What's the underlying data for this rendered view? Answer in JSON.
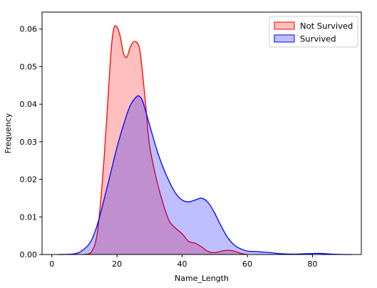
{
  "chart_data": {
    "type": "area",
    "xlabel": "Name_Length",
    "ylabel": "Frequency",
    "xlim": [
      -3,
      95
    ],
    "ylim": [
      0,
      0.0645
    ],
    "xticks": [
      0,
      20,
      40,
      60,
      80
    ],
    "yticks": [
      0.0,
      0.01,
      0.02,
      0.03,
      0.04,
      0.05,
      0.06
    ],
    "ytick_labels": [
      "0.00",
      "0.01",
      "0.02",
      "0.03",
      "0.04",
      "0.05",
      "0.06"
    ],
    "grid": false,
    "legend_position": "top-right",
    "series": [
      {
        "name": "Not Survived",
        "line_color": "#ff0000",
        "fill_color": "#ff0000",
        "fill_opacity": 0.25,
        "points": [
          [
            10,
            0.0
          ],
          [
            12,
            0.0005
          ],
          [
            14,
            0.006
          ],
          [
            16,
            0.025
          ],
          [
            18,
            0.052
          ],
          [
            19,
            0.06
          ],
          [
            20,
            0.0605
          ],
          [
            21,
            0.058
          ],
          [
            22,
            0.0535
          ],
          [
            23,
            0.0525
          ],
          [
            24,
            0.055
          ],
          [
            25,
            0.0565
          ],
          [
            26,
            0.0565
          ],
          [
            27,
            0.0545
          ],
          [
            28,
            0.047
          ],
          [
            29,
            0.038
          ],
          [
            30,
            0.029
          ],
          [
            32,
            0.0205
          ],
          [
            34,
            0.014
          ],
          [
            36,
            0.009
          ],
          [
            38,
            0.007
          ],
          [
            40,
            0.0055
          ],
          [
            42,
            0.0035
          ],
          [
            44,
            0.003
          ],
          [
            46,
            0.002
          ],
          [
            48,
            0.0008
          ],
          [
            50,
            0.0005
          ],
          [
            52,
            0.0009
          ],
          [
            54,
            0.0011
          ],
          [
            56,
            0.0009
          ],
          [
            58,
            0.0003
          ],
          [
            60,
            0.0
          ]
        ]
      },
      {
        "name": "Survived",
        "line_color": "#0000ff",
        "fill_color": "#0000ff",
        "fill_opacity": 0.25,
        "points": [
          [
            2,
            0.0
          ],
          [
            6,
            0.0001
          ],
          [
            8,
            0.0004
          ],
          [
            10,
            0.0015
          ],
          [
            12,
            0.0035
          ],
          [
            14,
            0.008
          ],
          [
            16,
            0.0145
          ],
          [
            18,
            0.0215
          ],
          [
            20,
            0.0285
          ],
          [
            22,
            0.0345
          ],
          [
            24,
            0.0395
          ],
          [
            26,
            0.042
          ],
          [
            27,
            0.042
          ],
          [
            28,
            0.0405
          ],
          [
            30,
            0.0345
          ],
          [
            32,
            0.0285
          ],
          [
            34,
            0.0235
          ],
          [
            36,
            0.0195
          ],
          [
            38,
            0.0163
          ],
          [
            40,
            0.0145
          ],
          [
            42,
            0.014
          ],
          [
            44,
            0.0145
          ],
          [
            46,
            0.015
          ],
          [
            48,
            0.0138
          ],
          [
            50,
            0.011
          ],
          [
            52,
            0.0075
          ],
          [
            54,
            0.0045
          ],
          [
            56,
            0.0025
          ],
          [
            58,
            0.0015
          ],
          [
            60,
            0.0009
          ],
          [
            62,
            0.0008
          ],
          [
            64,
            0.0007
          ],
          [
            66,
            0.0006
          ],
          [
            68,
            0.0004
          ],
          [
            70,
            0.0002
          ],
          [
            74,
            0.0001
          ],
          [
            78,
            0.0002
          ],
          [
            82,
            0.0003
          ],
          [
            86,
            0.0001
          ],
          [
            90,
            0.0
          ],
          [
            92,
            0.0
          ]
        ]
      }
    ]
  }
}
